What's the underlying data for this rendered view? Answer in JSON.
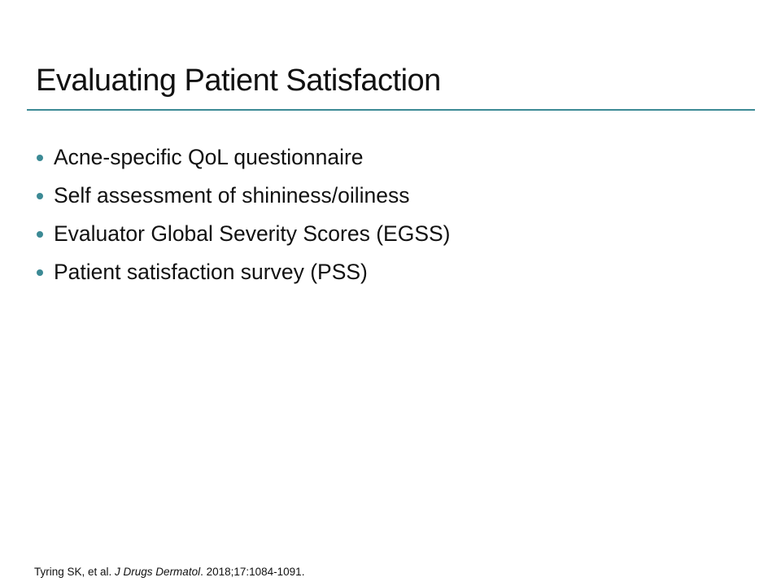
{
  "slide": {
    "title": "Evaluating Patient Satisfaction",
    "accent_color": "#3c8a95",
    "bullets": [
      "Acne-specific QoL questionnaire",
      "Self assessment of shininess/oiliness",
      "Evaluator Global Severity Scores (EGSS)",
      "Patient satisfaction survey (PSS)"
    ],
    "citation": {
      "authors": "Tyring SK, et al. ",
      "journal": "J Drugs Dermatol",
      "details": ". 2018;17:1084-1091."
    }
  }
}
